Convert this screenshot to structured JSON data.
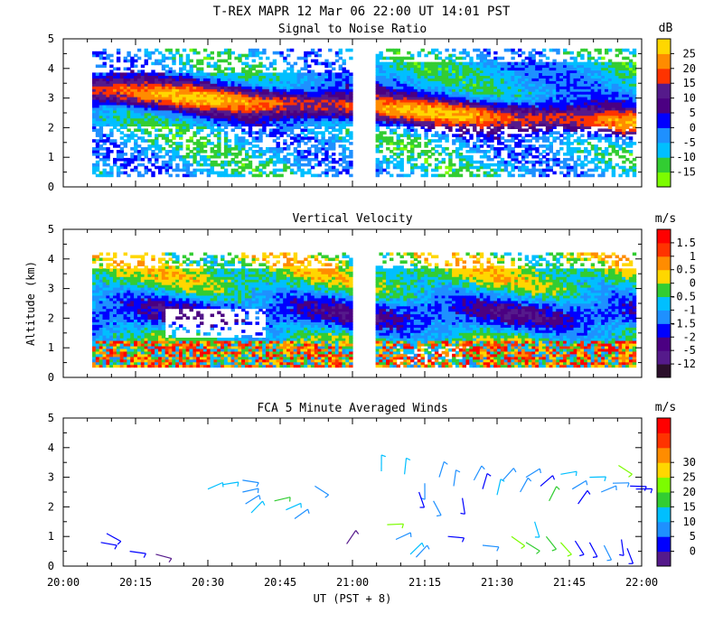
{
  "header": {
    "title": "T-REX   MAPR 12 Mar 06   22:00 UT   14:01   PST"
  },
  "chart_data": [
    {
      "type": "heatmap",
      "title": "Signal to Noise Ratio",
      "units": "dB",
      "ylabel": "",
      "ylim": [
        0,
        5
      ],
      "yticks": [
        "0",
        "1",
        "2",
        "3",
        "4",
        "5"
      ],
      "xlim_hours": [
        20.0,
        22.0
      ],
      "colorbar_labels": [
        "-15",
        "-10",
        "-5",
        "0",
        "5",
        "10",
        "15",
        "20",
        "25"
      ],
      "colorbar_colors": [
        "#7cfc00",
        "#32cd32",
        "#00bfff",
        "#1e90ff",
        "#0000ff",
        "#4b0082",
        "#551a8b",
        "#ff3300",
        "#ff8c00",
        "#ffd700"
      ],
      "data_gap_hours": [
        20.99,
        21.08
      ]
    },
    {
      "type": "heatmap",
      "title": "Vertical Velocity",
      "units": "m/s",
      "ylabel": "Altitude (km)",
      "ylim": [
        0,
        5
      ],
      "yticks": [
        "0",
        "1",
        "2",
        "3",
        "4",
        "5"
      ],
      "xlim_hours": [
        20.0,
        22.0
      ],
      "colorbar_labels": [
        "-12",
        "-5",
        "-2",
        "-1.5",
        "-1",
        "-0.5",
        "0",
        "0.5",
        "1",
        "1.5"
      ],
      "colorbar_colors": [
        "#2b0f2b",
        "#551a8b",
        "#4b0082",
        "#0000ff",
        "#1e90ff",
        "#00bfff",
        "#32cd32",
        "#ffd700",
        "#ff8c00",
        "#ff3300",
        "#ff0000"
      ],
      "data_gap_hours": [
        20.99,
        21.08
      ]
    },
    {
      "type": "scatter",
      "title": "FCA 5 Minute Averaged Winds",
      "units": "m/s",
      "ylabel": "",
      "ylim": [
        0,
        5
      ],
      "yticks": [
        "0",
        "1",
        "2",
        "3",
        "4",
        "5"
      ],
      "xlim_hours": [
        20.0,
        22.0
      ],
      "xticks": [
        "20:00",
        "20:15",
        "20:30",
        "20:45",
        "21:00",
        "21:15",
        "21:30",
        "21:45",
        "22:00"
      ],
      "xlabel": "UT  (PST + 8)",
      "colorbar_labels": [
        "0",
        "5",
        "10",
        "15",
        "20",
        "25",
        "30"
      ],
      "colorbar_colors": [
        "#551a8b",
        "#0000ff",
        "#1e90ff",
        "#00bfff",
        "#32cd32",
        "#7cfc00",
        "#ffd700",
        "#ff8c00",
        "#ff3300",
        "#ff0000"
      ],
      "barbs": [
        {
          "t": 20.13,
          "alt": 0.8,
          "speed": 4
        },
        {
          "t": 20.15,
          "alt": 1.1,
          "speed": 6
        },
        {
          "t": 20.23,
          "alt": 0.5,
          "speed": 4
        },
        {
          "t": 20.32,
          "alt": 0.4,
          "speed": 3
        },
        {
          "t": 20.5,
          "alt": 2.6,
          "speed": 12
        },
        {
          "t": 20.55,
          "alt": 2.75,
          "speed": 10
        },
        {
          "t": 20.62,
          "alt": 2.9,
          "speed": 8
        },
        {
          "t": 20.62,
          "alt": 2.5,
          "speed": 7
        },
        {
          "t": 20.63,
          "alt": 2.1,
          "speed": 9
        },
        {
          "t": 20.65,
          "alt": 1.8,
          "speed": 12
        },
        {
          "t": 20.73,
          "alt": 2.2,
          "speed": 15
        },
        {
          "t": 20.77,
          "alt": 1.9,
          "speed": 10
        },
        {
          "t": 20.8,
          "alt": 1.6,
          "speed": 7
        },
        {
          "t": 20.87,
          "alt": 2.7,
          "speed": 9
        },
        {
          "t": 20.98,
          "alt": 0.75,
          "speed": 3
        },
        {
          "t": 21.12,
          "alt": 1.4,
          "speed": 16
        },
        {
          "t": 21.15,
          "alt": 0.9,
          "speed": 8
        },
        {
          "t": 21.2,
          "alt": 0.4,
          "speed": 10
        },
        {
          "t": 21.22,
          "alt": 0.3,
          "speed": 7
        },
        {
          "t": 21.1,
          "alt": 3.2,
          "speed": 12
        },
        {
          "t": 21.18,
          "alt": 3.1,
          "speed": 11
        },
        {
          "t": 21.25,
          "alt": 2.8,
          "speed": 9
        },
        {
          "t": 21.3,
          "alt": 3.0,
          "speed": 7
        },
        {
          "t": 21.23,
          "alt": 2.5,
          "speed": 6
        },
        {
          "t": 21.28,
          "alt": 2.2,
          "speed": 8
        },
        {
          "t": 21.35,
          "alt": 2.7,
          "speed": 9
        },
        {
          "t": 21.38,
          "alt": 2.3,
          "speed": 6
        },
        {
          "t": 21.42,
          "alt": 2.9,
          "speed": 7
        },
        {
          "t": 21.45,
          "alt": 2.6,
          "speed": 5
        },
        {
          "t": 21.5,
          "alt": 2.4,
          "speed": 12
        },
        {
          "t": 21.52,
          "alt": 2.9,
          "speed": 8
        },
        {
          "t": 21.58,
          "alt": 2.5,
          "speed": 7
        },
        {
          "t": 21.6,
          "alt": 3.0,
          "speed": 9
        },
        {
          "t": 21.65,
          "alt": 2.7,
          "speed": 4
        },
        {
          "t": 21.68,
          "alt": 2.2,
          "speed": 13
        },
        {
          "t": 21.72,
          "alt": 3.1,
          "speed": 11
        },
        {
          "t": 21.76,
          "alt": 2.6,
          "speed": 8
        },
        {
          "t": 21.78,
          "alt": 2.1,
          "speed": 6
        },
        {
          "t": 21.82,
          "alt": 3.0,
          "speed": 10
        },
        {
          "t": 21.86,
          "alt": 2.5,
          "speed": 9
        },
        {
          "t": 21.9,
          "alt": 2.8,
          "speed": 7
        },
        {
          "t": 21.92,
          "alt": 3.4,
          "speed": 18
        },
        {
          "t": 21.96,
          "alt": 2.7,
          "speed": 5
        },
        {
          "t": 21.98,
          "alt": 2.6,
          "speed": 6
        },
        {
          "t": 21.63,
          "alt": 1.5,
          "speed": 10
        },
        {
          "t": 21.33,
          "alt": 1.0,
          "speed": 5
        },
        {
          "t": 21.45,
          "alt": 0.7,
          "speed": 7
        },
        {
          "t": 21.55,
          "alt": 1.0,
          "speed": 16
        },
        {
          "t": 21.6,
          "alt": 0.8,
          "speed": 15
        },
        {
          "t": 21.67,
          "alt": 1.0,
          "speed": 14
        },
        {
          "t": 21.72,
          "alt": 0.8,
          "speed": 16
        },
        {
          "t": 21.77,
          "alt": 0.85,
          "speed": 6
        },
        {
          "t": 21.82,
          "alt": 0.8,
          "speed": 5
        },
        {
          "t": 21.87,
          "alt": 0.7,
          "speed": 7
        },
        {
          "t": 21.93,
          "alt": 0.9,
          "speed": 5
        },
        {
          "t": 21.95,
          "alt": 0.6,
          "speed": 6
        }
      ]
    }
  ]
}
